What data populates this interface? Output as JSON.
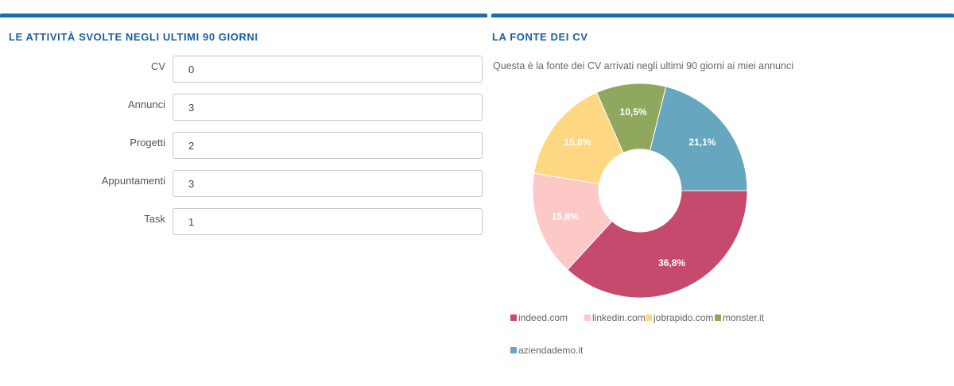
{
  "activities": {
    "title": "LE ATTIVITÀ SVOLTE NEGLI ULTIMI 90 GIORNI",
    "fields": [
      {
        "label": "CV",
        "value": "0"
      },
      {
        "label": "Annunci",
        "value": "3"
      },
      {
        "label": "Progetti",
        "value": "2"
      },
      {
        "label": "Appuntamenti",
        "value": "3"
      },
      {
        "label": "Task",
        "value": "1"
      }
    ]
  },
  "cv_source": {
    "title": "LA FONTE DEI CV",
    "description": "Questa è la fonte dei CV arrivati negli ultimi 90 giorni ai miei annunci"
  },
  "colors": {
    "accent": "#1a6fb0",
    "title": "#1a5f9c"
  },
  "chart_data": {
    "type": "pie",
    "variant": "donut",
    "legend_position": "bottom",
    "slices": [
      {
        "name": "indeed.com",
        "value": 36.8,
        "label": "36,8%",
        "color": "#c64a6e"
      },
      {
        "name": "linkedin.com",
        "value": 15.8,
        "label": "15,8%",
        "color": "#fcc9c7"
      },
      {
        "name": "jobrapido.com",
        "value": 15.8,
        "label": "15,8%",
        "color": "#fdd781"
      },
      {
        "name": "monster.it",
        "value": 10.5,
        "label": "10,5%",
        "color": "#8fa85e"
      },
      {
        "name": "aziendademo.it",
        "value": 21.1,
        "label": "21,1%",
        "color": "#66a6bf"
      }
    ]
  }
}
